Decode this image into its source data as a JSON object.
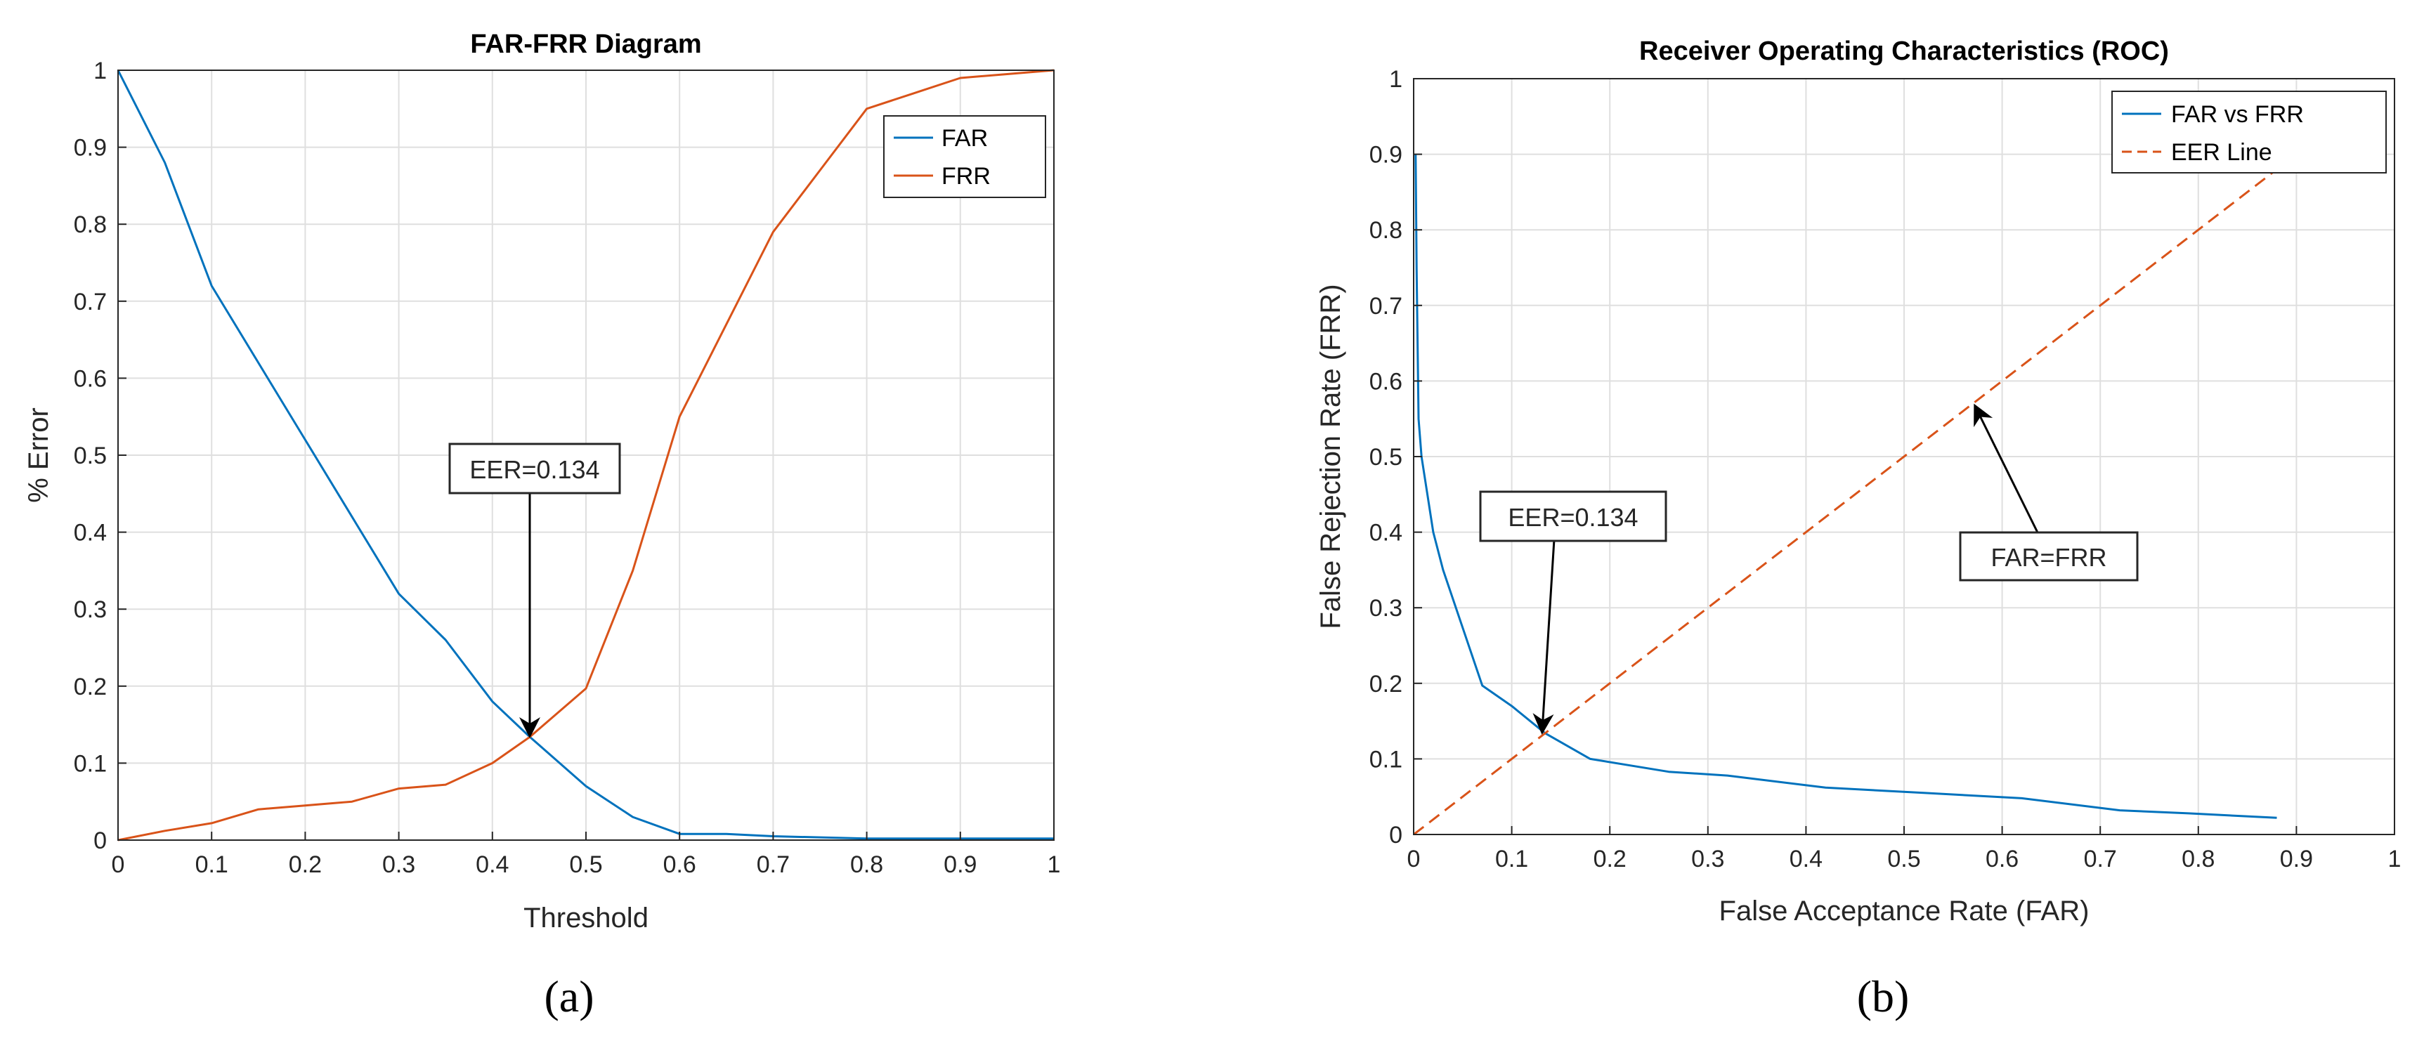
{
  "chart_data": [
    {
      "type": "line",
      "title": "FAR-FRR Diagram",
      "xlabel": "Threshold",
      "ylabel": "% Error",
      "xlim": [
        0,
        1
      ],
      "ylim": [
        0,
        1
      ],
      "grid": true,
      "legend_position": "top-right",
      "xticks": [
        "0",
        "0.1",
        "0.2",
        "0.3",
        "0.4",
        "0.5",
        "0.6",
        "0.7",
        "0.8",
        "0.9",
        "1"
      ],
      "yticks": [
        "0",
        "0.1",
        "0.2",
        "0.3",
        "0.4",
        "0.5",
        "0.6",
        "0.7",
        "0.8",
        "0.9",
        "1"
      ],
      "series": [
        {
          "name": "FAR",
          "color": "#0072BD",
          "dashed": false,
          "x": [
            0,
            0.05,
            0.1,
            0.15,
            0.2,
            0.25,
            0.3,
            0.35,
            0.4,
            0.44,
            0.5,
            0.55,
            0.6,
            0.65,
            0.7,
            0.8,
            0.9,
            1.0
          ],
          "y": [
            1.0,
            0.88,
            0.72,
            0.62,
            0.52,
            0.42,
            0.32,
            0.26,
            0.18,
            0.134,
            0.07,
            0.03,
            0.008,
            0.008,
            0.005,
            0.002,
            0.002,
            0.002
          ]
        },
        {
          "name": "FRR",
          "color": "#D95319",
          "dashed": false,
          "x": [
            0,
            0.05,
            0.1,
            0.15,
            0.2,
            0.25,
            0.3,
            0.35,
            0.4,
            0.44,
            0.5,
            0.55,
            0.6,
            0.65,
            0.7,
            0.75,
            0.8,
            0.85,
            0.9,
            0.95,
            1.0
          ],
          "y": [
            0.0,
            0.012,
            0.022,
            0.04,
            0.045,
            0.05,
            0.067,
            0.072,
            0.1,
            0.134,
            0.197,
            0.35,
            0.55,
            0.67,
            0.79,
            0.87,
            0.95,
            0.97,
            0.99,
            0.995,
            1.0
          ]
        }
      ],
      "annotations": [
        {
          "text": "EER=0.134",
          "target": [
            0.44,
            0.134
          ],
          "box_at": [
            0.44,
            0.48
          ]
        }
      ],
      "caption": "(a)"
    },
    {
      "type": "line",
      "title": "Receiver Operating Characteristics (ROC)",
      "xlabel": "False Acceptance Rate (FAR)",
      "ylabel": "False Rejection Rate (FRR)",
      "xlim": [
        0,
        1
      ],
      "ylim": [
        0,
        1
      ],
      "grid": true,
      "legend_position": "top-right",
      "xticks": [
        "0",
        "0.1",
        "0.2",
        "0.3",
        "0.4",
        "0.5",
        "0.6",
        "0.7",
        "0.8",
        "0.9",
        "1"
      ],
      "yticks": [
        "0",
        "0.1",
        "0.2",
        "0.3",
        "0.4",
        "0.5",
        "0.6",
        "0.7",
        "0.8",
        "0.9",
        "1"
      ],
      "series": [
        {
          "name": "FAR vs FRR",
          "color": "#0072BD",
          "dashed": false,
          "x": [
            0.002,
            0.003,
            0.005,
            0.008,
            0.02,
            0.03,
            0.07,
            0.1,
            0.134,
            0.18,
            0.26,
            0.32,
            0.42,
            0.52,
            0.62,
            0.72,
            0.79,
            0.88
          ],
          "y": [
            0.9,
            0.75,
            0.55,
            0.5,
            0.4,
            0.35,
            0.197,
            0.17,
            0.134,
            0.1,
            0.083,
            0.078,
            0.062,
            0.055,
            0.048,
            0.032,
            0.028,
            0.022
          ]
        },
        {
          "name": "EER Line",
          "color": "#D95319",
          "dashed": true,
          "x": [
            0,
            0.88
          ],
          "y": [
            0,
            0.88
          ]
        }
      ],
      "annotations": [
        {
          "text": "EER=0.134",
          "target": [
            0.134,
            0.134
          ],
          "box_at": [
            0.13,
            0.42
          ]
        },
        {
          "text": "FAR=FRR",
          "target": [
            0.57,
            0.57
          ],
          "box_at": [
            0.65,
            0.37
          ]
        }
      ],
      "caption": "(b)"
    }
  ]
}
